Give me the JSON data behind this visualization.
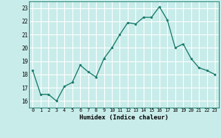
{
  "x": [
    0,
    1,
    2,
    3,
    4,
    5,
    6,
    7,
    8,
    9,
    10,
    11,
    12,
    13,
    14,
    15,
    16,
    17,
    18,
    19,
    20,
    21,
    22,
    23
  ],
  "y": [
    18.3,
    16.5,
    16.5,
    16.0,
    17.1,
    17.4,
    18.7,
    18.2,
    17.8,
    19.2,
    20.0,
    21.0,
    21.9,
    21.8,
    22.3,
    22.3,
    23.1,
    22.1,
    20.0,
    20.3,
    19.2,
    18.5,
    18.3,
    18.0
  ],
  "line_color": "#1a7a6a",
  "marker_color": "#1a7a6a",
  "bg_color": "#c8ecea",
  "grid_color": "#ffffff",
  "grid_minor_color": "#d8f0ee",
  "xlabel": "Humidex (Indice chaleur)",
  "ylim": [
    15.5,
    23.5
  ],
  "xlim": [
    -0.5,
    23.5
  ],
  "yticks": [
    16,
    17,
    18,
    19,
    20,
    21,
    22,
    23
  ],
  "xticks": [
    0,
    1,
    2,
    3,
    4,
    5,
    6,
    7,
    8,
    9,
    10,
    11,
    12,
    13,
    14,
    15,
    16,
    17,
    18,
    19,
    20,
    21,
    22,
    23
  ]
}
